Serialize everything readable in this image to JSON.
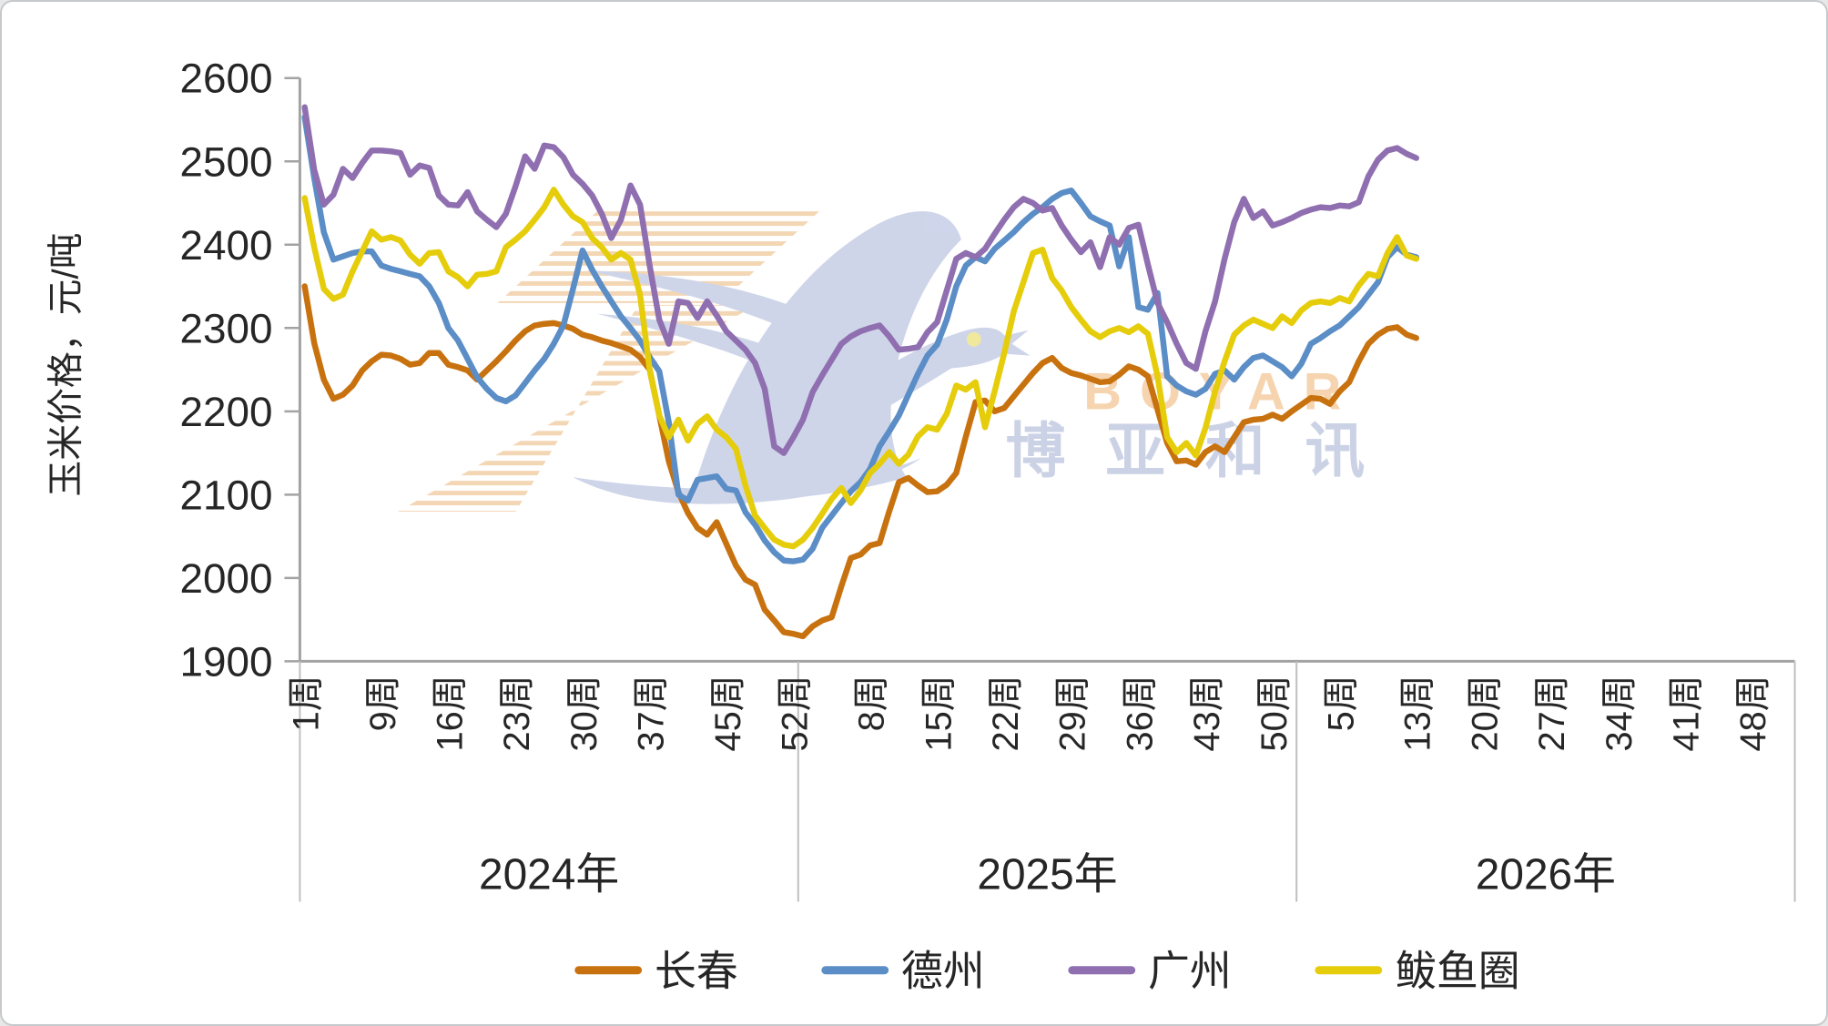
{
  "watermark": {
    "en": "BOYAR",
    "cn": "博亚和讯"
  },
  "chart_data": {
    "type": "line",
    "title": "",
    "y_axis": {
      "label": "玉米价格，元/吨",
      "min": 1900,
      "max": 2600,
      "step": 100,
      "tick_labels": [
        "2600",
        "2500",
        "2400",
        "2300",
        "2200",
        "2100",
        "2000",
        "1900"
      ]
    },
    "x_axis": {
      "total_weeks": 156,
      "ticks": [
        {
          "label": "1周",
          "week_index": 0
        },
        {
          "label": "9周",
          "week_index": 8
        },
        {
          "label": "16周",
          "week_index": 15
        },
        {
          "label": "23周",
          "week_index": 22
        },
        {
          "label": "30周",
          "week_index": 29
        },
        {
          "label": "37周",
          "week_index": 36
        },
        {
          "label": "45周",
          "week_index": 44
        },
        {
          "label": "52周",
          "week_index": 51
        },
        {
          "label": "8周",
          "week_index": 59
        },
        {
          "label": "15周",
          "week_index": 66
        },
        {
          "label": "22周",
          "week_index": 73
        },
        {
          "label": "29周",
          "week_index": 80
        },
        {
          "label": "36周",
          "week_index": 87
        },
        {
          "label": "43周",
          "week_index": 94
        },
        {
          "label": "50周",
          "week_index": 101
        },
        {
          "label": "5周",
          "week_index": 108
        },
        {
          "label": "13周",
          "week_index": 116
        },
        {
          "label": "20周",
          "week_index": 123
        },
        {
          "label": "27周",
          "week_index": 130
        },
        {
          "label": "34周",
          "week_index": 137
        },
        {
          "label": "41周",
          "week_index": 144
        },
        {
          "label": "48周",
          "week_index": 151
        }
      ],
      "year_groups": [
        {
          "label": "2024年",
          "start_index": 0,
          "end_index": 51
        },
        {
          "label": "2025年",
          "start_index": 52,
          "end_index": 103
        },
        {
          "label": "2026年",
          "start_index": 104,
          "end_index": 155
        }
      ]
    },
    "grid": false,
    "legend_position": "bottom",
    "series": [
      {
        "id": "changchun",
        "name": "长春",
        "color": "#C8720F",
        "values": [
          2350,
          2282,
          2238,
          2215,
          2220,
          2231,
          2249,
          2260,
          2268,
          2267,
          2263,
          2256,
          2258,
          2270,
          2270,
          2256,
          2253,
          2249,
          2238,
          2249,
          2260,
          2272,
          2285,
          2296,
          2303,
          2305,
          2306,
          2303,
          2299,
          2292,
          2289,
          2285,
          2282,
          2278,
          2274,
          2265,
          2250,
          2195,
          2140,
          2103,
          2078,
          2060,
          2052,
          2067,
          2041,
          2015,
          1998,
          1992,
          1962,
          1949,
          1935,
          1933,
          1930,
          1942,
          1949,
          1953,
          1990,
          2024,
          2028,
          2039,
          2042,
          2080,
          2115,
          2120,
          2111,
          2103,
          2104,
          2112,
          2126,
          2170,
          2211,
          2213,
          2200,
          2204,
          2218,
          2232,
          2246,
          2258,
          2264,
          2252,
          2246,
          2243,
          2239,
          2235,
          2236,
          2244,
          2254,
          2250,
          2242,
          2202,
          2162,
          2140,
          2141,
          2136,
          2151,
          2158,
          2151,
          2169,
          2187,
          2190,
          2191,
          2196,
          2191,
          2200,
          2208,
          2216,
          2215,
          2209,
          2224,
          2235,
          2260,
          2281,
          2292,
          2299,
          2301,
          2292,
          2288
        ]
      },
      {
        "id": "dezhou",
        "name": "德州",
        "color": "#5B8DC6",
        "values": [
          2553,
          2480,
          2415,
          2382,
          2386,
          2390,
          2392,
          2392,
          2375,
          2371,
          2368,
          2365,
          2362,
          2350,
          2330,
          2300,
          2285,
          2263,
          2241,
          2227,
          2216,
          2212,
          2219,
          2234,
          2249,
          2263,
          2281,
          2303,
          2347,
          2393,
          2370,
          2350,
          2332,
          2314,
          2300,
          2285,
          2265,
          2248,
          2187,
          2100,
          2093,
          2118,
          2120,
          2122,
          2107,
          2105,
          2079,
          2064,
          2045,
          2031,
          2021,
          2020,
          2022,
          2035,
          2060,
          2075,
          2090,
          2104,
          2115,
          2131,
          2158,
          2176,
          2195,
          2220,
          2245,
          2267,
          2280,
          2310,
          2350,
          2375,
          2385,
          2380,
          2395,
          2405,
          2415,
          2427,
          2437,
          2445,
          2455,
          2462,
          2465,
          2450,
          2434,
          2428,
          2423,
          2374,
          2409,
          2325,
          2322,
          2342,
          2242,
          2231,
          2224,
          2220,
          2227,
          2245,
          2249,
          2238,
          2253,
          2264,
          2267,
          2260,
          2253,
          2242,
          2257,
          2281,
          2288,
          2296,
          2303,
          2314,
          2325,
          2340,
          2355,
          2385,
          2397,
          2388,
          2385
        ]
      },
      {
        "id": "guangzhou",
        "name": "广州",
        "color": "#8F6FB0",
        "values": [
          2565,
          2490,
          2448,
          2460,
          2491,
          2480,
          2498,
          2513,
          2513,
          2512,
          2510,
          2484,
          2495,
          2492,
          2459,
          2448,
          2447,
          2463,
          2440,
          2430,
          2421,
          2437,
          2470,
          2506,
          2491,
          2519,
          2517,
          2505,
          2484,
          2473,
          2459,
          2437,
          2408,
          2430,
          2471,
          2448,
          2375,
          2310,
          2281,
          2332,
          2330,
          2312,
          2332,
          2315,
          2296,
          2285,
          2274,
          2258,
          2227,
          2158,
          2150,
          2169,
          2190,
          2223,
          2243,
          2262,
          2281,
          2290,
          2296,
          2300,
          2303,
          2290,
          2274,
          2275,
          2277,
          2295,
          2307,
          2345,
          2383,
          2390,
          2385,
          2395,
          2413,
          2430,
          2445,
          2455,
          2450,
          2441,
          2444,
          2423,
          2406,
          2391,
          2403,
          2373,
          2409,
          2400,
          2420,
          2424,
          2376,
          2330,
          2307,
          2281,
          2258,
          2251,
          2296,
          2332,
          2383,
          2427,
          2455,
          2432,
          2440,
          2423,
          2427,
          2432,
          2438,
          2442,
          2445,
          2444,
          2447,
          2446,
          2451,
          2482,
          2502,
          2513,
          2516,
          2509,
          2504
        ]
      },
      {
        "id": "bayuquan",
        "name": "鲅鱼圈",
        "color": "#E5CD0B",
        "values": [
          2456,
          2397,
          2347,
          2335,
          2340,
          2368,
          2392,
          2416,
          2406,
          2409,
          2405,
          2388,
          2377,
          2390,
          2391,
          2368,
          2361,
          2350,
          2364,
          2365,
          2368,
          2397,
          2406,
          2416,
          2430,
          2445,
          2466,
          2448,
          2434,
          2427,
          2408,
          2397,
          2382,
          2390,
          2382,
          2340,
          2250,
          2195,
          2169,
          2190,
          2165,
          2185,
          2194,
          2178,
          2169,
          2155,
          2111,
          2075,
          2060,
          2046,
          2040,
          2038,
          2046,
          2060,
          2077,
          2095,
          2108,
          2090,
          2105,
          2126,
          2137,
          2151,
          2137,
          2148,
          2170,
          2181,
          2178,
          2197,
          2231,
          2226,
          2235,
          2181,
          2224,
          2270,
          2320,
          2355,
          2390,
          2394,
          2360,
          2345,
          2325,
          2310,
          2296,
          2289,
          2296,
          2300,
          2295,
          2302,
          2293,
          2242,
          2169,
          2151,
          2162,
          2147,
          2180,
          2224,
          2260,
          2292,
          2303,
          2310,
          2305,
          2300,
          2314,
          2306,
          2321,
          2330,
          2332,
          2330,
          2336,
          2332,
          2351,
          2365,
          2362,
          2390,
          2409,
          2387,
          2383
        ]
      }
    ]
  }
}
